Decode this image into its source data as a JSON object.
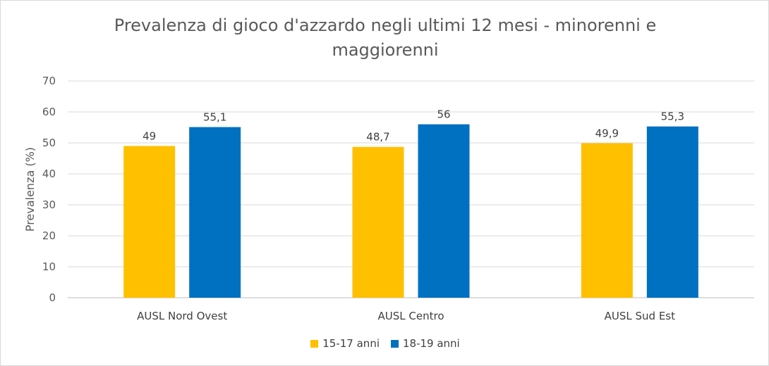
{
  "chart_data": {
    "type": "bar",
    "title": "Prevalenza di gioco d'azzardo negli ultimi 12 mesi - minorenni e maggiorenni",
    "xlabel": "",
    "ylabel": "Prevalenza (%)",
    "ylim": [
      0,
      70
    ],
    "yticks": [
      0,
      10,
      20,
      30,
      40,
      50,
      60,
      70
    ],
    "categories": [
      "AUSL Nord Ovest",
      "AUSL Centro",
      "AUSL Sud Est"
    ],
    "series": [
      {
        "name": "15-17 anni",
        "values": [
          49,
          48.7,
          49.9
        ],
        "labels": [
          "49",
          "48,7",
          "49,9"
        ],
        "color": "#FFC000"
      },
      {
        "name": "18-19 anni",
        "values": [
          55.1,
          56,
          55.3
        ],
        "labels": [
          "55,1",
          "56",
          "55,3"
        ],
        "color": "#0070C0"
      }
    ],
    "grid": true,
    "legend_position": "bottom"
  }
}
